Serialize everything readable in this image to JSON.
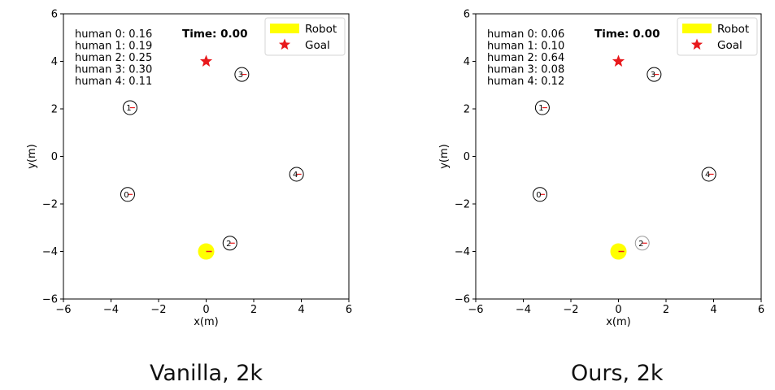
{
  "chart_data": [
    {
      "type": "scatter",
      "caption": "Vanilla, 2k",
      "xlabel": "x(m)",
      "ylabel": "y(m)",
      "xlim": [
        -6,
        6
      ],
      "ylim": [
        -6,
        6
      ],
      "xticks": [
        "−6",
        "−4",
        "−2",
        "0",
        "2",
        "4",
        "6"
      ],
      "yticks": [
        "−6",
        "−4",
        "−2",
        "0",
        "2",
        "4",
        "6"
      ],
      "time_label": "Time: 0.00",
      "legend": [
        {
          "name": "Robot",
          "color": "#ffff00"
        },
        {
          "name": "Goal",
          "color": "#e8191c"
        }
      ],
      "human_values": [
        "human 0: 0.16",
        "human 1: 0.19",
        "human 2: 0.25",
        "human 3: 0.30",
        "human 4: 0.11"
      ],
      "robot": {
        "x": 0,
        "y": -4
      },
      "goal": {
        "x": 0,
        "y": 4
      },
      "humans": [
        {
          "id": "0",
          "x": -3.3,
          "y": -1.6,
          "faded": false
        },
        {
          "id": "1",
          "x": -3.2,
          "y": 2.05,
          "faded": false
        },
        {
          "id": "2",
          "x": 1.0,
          "y": -3.65,
          "faded": false
        },
        {
          "id": "3",
          "x": 1.5,
          "y": 3.45,
          "faded": false
        },
        {
          "id": "4",
          "x": 3.8,
          "y": -0.75,
          "faded": false
        }
      ]
    },
    {
      "type": "scatter",
      "caption": "Ours, 2k",
      "xlabel": "x(m)",
      "ylabel": "y(m)",
      "xlim": [
        -6,
        6
      ],
      "ylim": [
        -6,
        6
      ],
      "xticks": [
        "−6",
        "−4",
        "−2",
        "0",
        "2",
        "4",
        "6"
      ],
      "yticks": [
        "−6",
        "−4",
        "−2",
        "0",
        "2",
        "4",
        "6"
      ],
      "time_label": "Time: 0.00",
      "legend": [
        {
          "name": "Robot",
          "color": "#ffff00"
        },
        {
          "name": "Goal",
          "color": "#e8191c"
        }
      ],
      "human_values": [
        "human 0: 0.06",
        "human 1: 0.10",
        "human 2: 0.64",
        "human 3: 0.08",
        "human 4: 0.12"
      ],
      "robot": {
        "x": 0,
        "y": -4
      },
      "goal": {
        "x": 0,
        "y": 4
      },
      "humans": [
        {
          "id": "0",
          "x": -3.3,
          "y": -1.6,
          "faded": false
        },
        {
          "id": "1",
          "x": -3.2,
          "y": 2.05,
          "faded": false
        },
        {
          "id": "2",
          "x": 1.0,
          "y": -3.65,
          "faded": true
        },
        {
          "id": "3",
          "x": 1.5,
          "y": 3.45,
          "faded": false
        },
        {
          "id": "4",
          "x": 3.8,
          "y": -0.75,
          "faded": false
        }
      ]
    }
  ]
}
